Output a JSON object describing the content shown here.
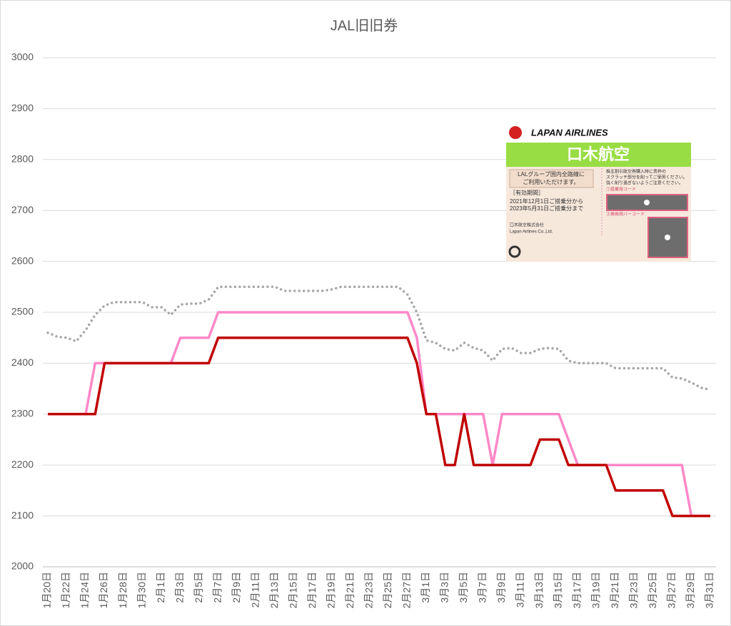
{
  "chart_data": {
    "type": "line",
    "title": "JAL旧旧券",
    "categories": [
      "1月20日",
      null,
      "1月22日",
      null,
      "1月24日",
      null,
      "1月26日",
      null,
      "1月28日",
      null,
      "1月30日",
      null,
      "2月1日",
      null,
      "2月3日",
      null,
      "2月5日",
      null,
      "2月7日",
      null,
      "2月9日",
      null,
      "2月11日",
      null,
      "2月13日",
      null,
      "2月15日",
      null,
      "2月17日",
      null,
      "2月19日",
      null,
      "2月21日",
      null,
      "2月23日",
      null,
      "2月25日",
      null,
      "2月27日",
      null,
      "3月1日",
      null,
      "3月3日",
      null,
      "3月5日",
      null,
      "3月7日",
      null,
      "3月9日",
      null,
      "3月11日",
      null,
      "3月13日",
      null,
      "3月15日",
      null,
      "3月17日",
      null,
      "3月19日",
      null,
      "3月21日",
      null,
      "3月23日",
      null,
      "3月25日",
      null,
      "3月27日",
      null,
      "3月29日",
      null,
      "3月31日"
    ],
    "series": [
      {
        "color": "#a6a6a6",
        "style": "dotted",
        "values": [
          2460,
          2452,
          2450,
          2443,
          2465,
          2495,
          2513,
          2520,
          2520,
          2520,
          2520,
          2510,
          2510,
          2495,
          2515,
          2517,
          2517,
          2525,
          2550,
          2550,
          2550,
          2550,
          2550,
          2550,
          2550,
          2542,
          2542,
          2542,
          2542,
          2542,
          2545,
          2550,
          2550,
          2550,
          2550,
          2550,
          2550,
          2550,
          2535,
          2500,
          2445,
          2440,
          2428,
          2425,
          2440,
          2430,
          2425,
          2405,
          2428,
          2430,
          2420,
          2420,
          2428,
          2430,
          2428,
          2405,
          2400,
          2400,
          2400,
          2400,
          2390,
          2390,
          2390,
          2390,
          2390,
          2390,
          2372,
          2370,
          2362,
          2352,
          2348
        ]
      },
      {
        "color": "#ff88c8",
        "style": "solid",
        "values": [
          2300,
          2300,
          2300,
          2300,
          2300,
          2400,
          2400,
          2400,
          2400,
          2400,
          2400,
          2400,
          2400,
          2400,
          2450,
          2450,
          2450,
          2450,
          2500,
          2500,
          2500,
          2500,
          2500,
          2500,
          2500,
          2500,
          2500,
          2500,
          2500,
          2500,
          2500,
          2500,
          2500,
          2500,
          2500,
          2500,
          2500,
          2500,
          2500,
          2450,
          2300,
          2300,
          2300,
          2300,
          2300,
          2300,
          2300,
          2200,
          2300,
          2300,
          2300,
          2300,
          2300,
          2300,
          2300,
          2250,
          2200,
          2200,
          2200,
          2200,
          2200,
          2200,
          2200,
          2200,
          2200,
          2200,
          2200,
          2200,
          2100,
          2100,
          2100
        ]
      },
      {
        "color": "#c00000",
        "style": "solid",
        "values": [
          2300,
          2300,
          2300,
          2300,
          2300,
          2300,
          2400,
          2400,
          2400,
          2400,
          2400,
          2400,
          2400,
          2400,
          2400,
          2400,
          2400,
          2400,
          2450,
          2450,
          2450,
          2450,
          2450,
          2450,
          2450,
          2450,
          2450,
          2450,
          2450,
          2450,
          2450,
          2450,
          2450,
          2450,
          2450,
          2450,
          2450,
          2450,
          2450,
          2400,
          2300,
          2300,
          2200,
          2200,
          2300,
          2200,
          2200,
          2200,
          2200,
          2200,
          2200,
          2200,
          2250,
          2250,
          2250,
          2200,
          2200,
          2200,
          2200,
          2200,
          2150,
          2150,
          2150,
          2150,
          2150,
          2150,
          2100,
          2100,
          2100,
          2100,
          2100
        ]
      }
    ],
    "ylim": [
      2000,
      3000
    ],
    "yticks": [
      2000,
      2100,
      2200,
      2300,
      2400,
      2500,
      2600,
      2700,
      2800,
      2900,
      3000
    ],
    "grid": true
  },
  "ticket_image": {
    "brand": "LAPAN AIRLINES",
    "name": "口木航空",
    "left_box": [
      "LALグループ国内全路線に",
      "ご利用いただけます。"
    ],
    "validity_label": "［有効期間］",
    "validity": [
      "2021年12月1日ご搭乗分から",
      "2023年5月31日ご搭乗分まで"
    ],
    "company": [
      "口木航空株式会社",
      "Lapan Airlines Co.,Ltd."
    ],
    "instructions": [
      "株主割引航空券購入時に表枠の",
      "スクラッチ部分を削ってご使用ください。",
      "強く削り過ぎないようご注意ください。"
    ],
    "code1": "①搭乗用コード",
    "code2": "②発券用バーコード"
  }
}
